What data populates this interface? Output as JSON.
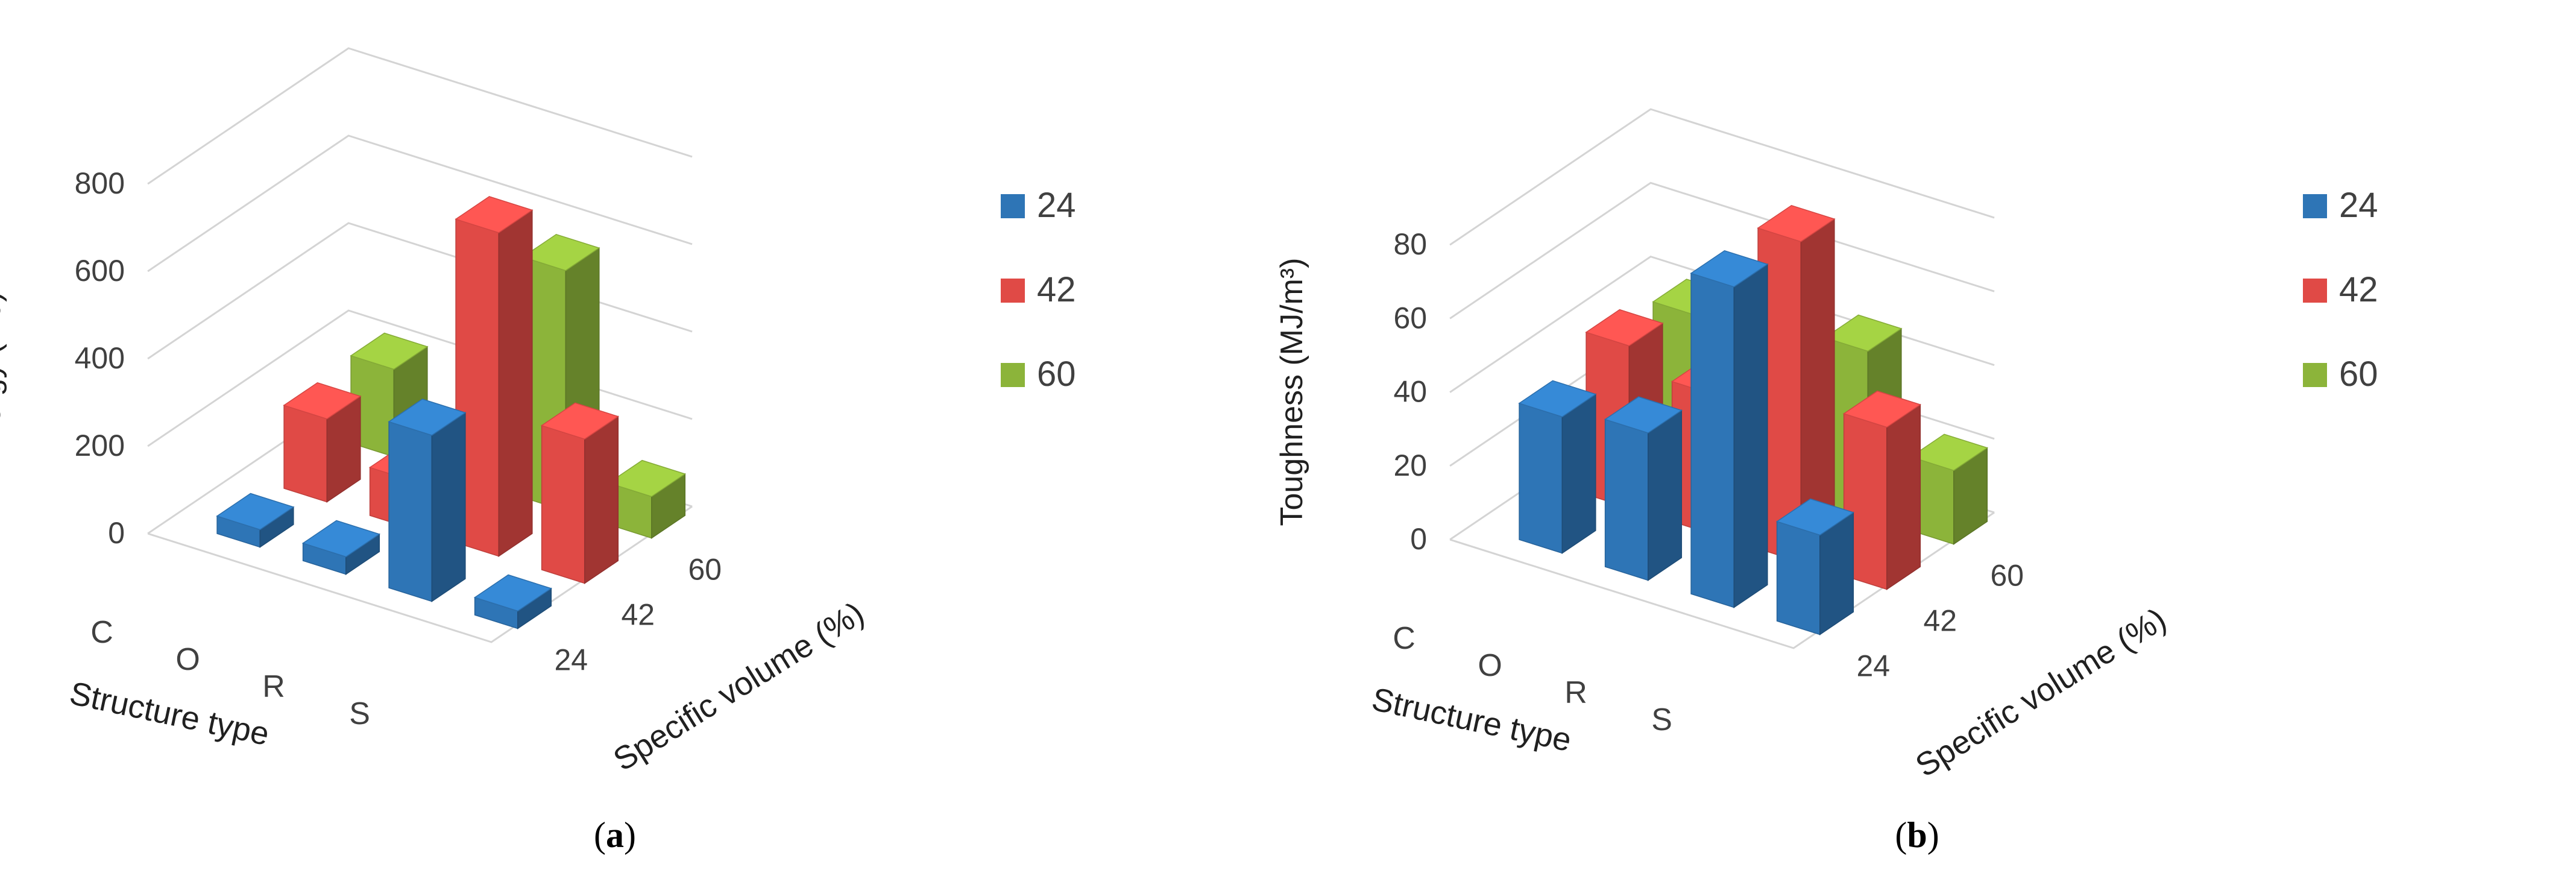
{
  "chart_data": [
    {
      "type": "bar3d",
      "panel_label": "a",
      "title": "",
      "ylabel": "Energy (mJ)",
      "xlabel": "Structure type",
      "zlabel": "Specific volume (%)",
      "categories": [
        "C",
        "O",
        "R",
        "S"
      ],
      "depth_categories": [
        "24",
        "42",
        "60"
      ],
      "yticks": [
        "0",
        "200",
        "400",
        "600",
        "800"
      ],
      "ylim": [
        0,
        800
      ],
      "grid": true,
      "legend_position": "right",
      "series": [
        {
          "name": "24",
          "color": "#2e75b6",
          "values": [
            40,
            40,
            380,
            40
          ]
        },
        {
          "name": "42",
          "color": "#e04a46",
          "values": [
            190,
            110,
            740,
            330
          ]
        },
        {
          "name": "60",
          "color": "#8cb43a",
          "values": [
            200,
            0,
            550,
            95
          ]
        }
      ]
    },
    {
      "type": "bar3d",
      "panel_label": "b",
      "title": "",
      "ylabel": "Toughness (MJ/m³)",
      "xlabel": "Structure type",
      "zlabel": "Specific volume (%)",
      "categories": [
        "C",
        "O",
        "R",
        "S"
      ],
      "depth_categories": [
        "24",
        "42",
        "60"
      ],
      "yticks": [
        "0",
        "20",
        "40",
        "60",
        "80"
      ],
      "ylim": [
        0,
        90
      ],
      "grid": true,
      "legend_position": "right",
      "series": [
        {
          "name": "24",
          "color": "#2e75b6",
          "values": [
            37,
            40,
            87,
            27
          ]
        },
        {
          "name": "42",
          "color": "#e04a46",
          "values": [
            44,
            38,
            87,
            44
          ]
        },
        {
          "name": "60",
          "color": "#8cb43a",
          "values": [
            40,
            0,
            45,
            20
          ]
        }
      ]
    }
  ]
}
